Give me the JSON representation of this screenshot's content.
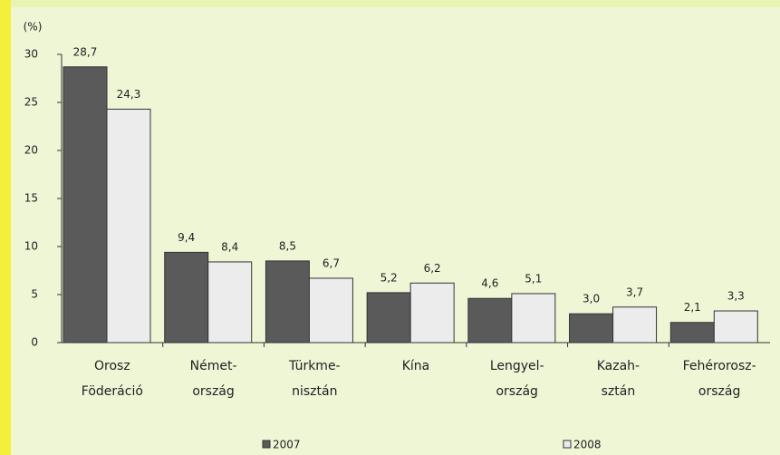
{
  "chart_data": {
    "type": "bar",
    "ylabel": "(%)",
    "categories": [
      [
        "Orosz",
        "Föderáció"
      ],
      [
        "Német-",
        "ország"
      ],
      [
        "Türkme-",
        "nisztán"
      ],
      [
        "Kína"
      ],
      [
        "Lengyel-",
        "ország"
      ],
      [
        "Kazah-",
        "sztán"
      ],
      [
        "Fehérorosz-",
        "ország"
      ]
    ],
    "series": [
      {
        "name": "2007",
        "color": "#5a5a5a",
        "values": [
          28.7,
          9.4,
          8.5,
          5.2,
          4.6,
          3.0,
          2.1
        ],
        "value_labels": [
          "28,7",
          "9,4",
          "8,5",
          "5,2",
          "4,6",
          "3,0",
          "2,1"
        ]
      },
      {
        "name": "2008",
        "color": "#ececec",
        "values": [
          24.3,
          8.4,
          6.7,
          6.2,
          5.1,
          3.7,
          3.3
        ],
        "value_labels": [
          "24,3",
          "8,4",
          "6,7",
          "6,2",
          "5,1",
          "3,7",
          "3,3"
        ]
      }
    ],
    "ylim": [
      0,
      30
    ],
    "yticks": [
      0,
      5,
      10,
      15,
      20,
      25,
      30
    ]
  }
}
